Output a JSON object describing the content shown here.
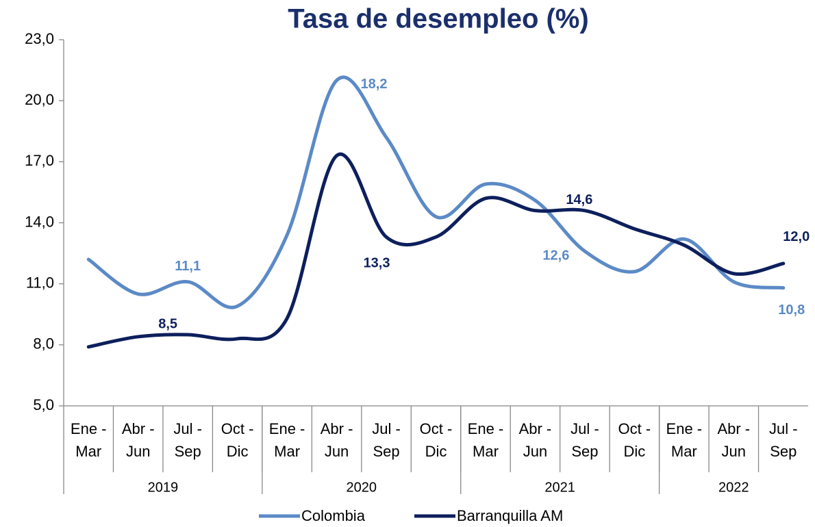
{
  "chart_data": {
    "type": "line",
    "title": "Tasa de desempleo (%)",
    "categories": [
      [
        "Ene -",
        "Mar"
      ],
      [
        "Abr -",
        "Jun"
      ],
      [
        "Jul -",
        "Sep"
      ],
      [
        "Oct -",
        "Dic"
      ],
      [
        "Ene -",
        "Mar"
      ],
      [
        "Abr -",
        "Jun"
      ],
      [
        "Jul -",
        "Sep"
      ],
      [
        "Oct -",
        "Dic"
      ],
      [
        "Ene -",
        "Mar"
      ],
      [
        "Abr -",
        "Jun"
      ],
      [
        "Jul -",
        "Sep"
      ],
      [
        "Oct -",
        "Dic"
      ],
      [
        "Ene -",
        "Mar"
      ],
      [
        "Abr -",
        "Jun"
      ],
      [
        "Jul -",
        "Sep"
      ]
    ],
    "groups": [
      {
        "label": "2019",
        "count": 4
      },
      {
        "label": "2020",
        "count": 4
      },
      {
        "label": "2021",
        "count": 4
      },
      {
        "label": "2022",
        "count": 3
      }
    ],
    "series": [
      {
        "name": "Colombia",
        "color": "#5b8ac6",
        "values": [
          12.2,
          10.5,
          11.1,
          9.9,
          13.4,
          21.0,
          18.2,
          14.3,
          15.9,
          15.1,
          12.6,
          11.6,
          13.2,
          11.1,
          10.8
        ],
        "value_labels": [
          null,
          null,
          "11,1",
          null,
          null,
          null,
          "18,2",
          null,
          null,
          null,
          "12,6",
          null,
          null,
          null,
          "10,8"
        ]
      },
      {
        "name": "Barranquilla AM",
        "color": "#0d1f5c",
        "values": [
          7.9,
          8.4,
          8.5,
          8.3,
          9.3,
          17.3,
          13.3,
          13.3,
          15.2,
          14.6,
          14.6,
          13.7,
          12.9,
          11.5,
          12.0
        ],
        "value_labels": [
          null,
          null,
          "8,5",
          null,
          null,
          null,
          "13,3",
          null,
          null,
          null,
          "14,6",
          null,
          null,
          null,
          "12,0"
        ]
      }
    ],
    "ylim": [
      5,
      23
    ],
    "yticks": [
      {
        "value": 5,
        "label": "5,0"
      },
      {
        "value": 8,
        "label": "8,0"
      },
      {
        "value": 11,
        "label": "11,0"
      },
      {
        "value": 14,
        "label": "14,0"
      },
      {
        "value": 17,
        "label": "17,0"
      },
      {
        "value": 20,
        "label": "20,0"
      },
      {
        "value": 23,
        "label": "23,0"
      }
    ],
    "legend": "bottom"
  }
}
